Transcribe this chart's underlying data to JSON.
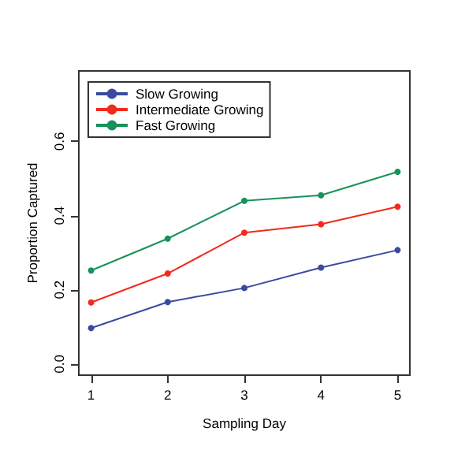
{
  "chart_data": {
    "type": "line",
    "xlabel": "Sampling Day",
    "ylabel": "Proportion Captured",
    "x": [
      1,
      2,
      3,
      4,
      5
    ],
    "series": [
      {
        "name": "Slow Growing",
        "color": "#3b4aa0",
        "values": [
          0.097,
          0.167,
          0.205,
          0.26,
          0.307
        ]
      },
      {
        "name": "Intermediate Growing",
        "color": "#f22a1c",
        "values": [
          0.166,
          0.244,
          0.354,
          0.377,
          0.424
        ]
      },
      {
        "name": "Fast Growing",
        "color": "#16925a",
        "values": [
          0.252,
          0.338,
          0.44,
          0.455,
          0.518
        ]
      }
    ],
    "xlim": [
      0.84,
      5.16
    ],
    "ylim": [
      -0.03,
      0.79
    ],
    "xticks": [
      1,
      2,
      3,
      4,
      5
    ],
    "yticks": [
      {
        "value": 0,
        "label": "0.0"
      },
      {
        "value": 0.2,
        "label": "0.2"
      },
      {
        "value": 0.4,
        "label": "0.4"
      },
      {
        "value": 0.6,
        "label": "0.6"
      }
    ],
    "legend": "top left",
    "marker": "circle",
    "line_style": "solid",
    "grid": false
  }
}
